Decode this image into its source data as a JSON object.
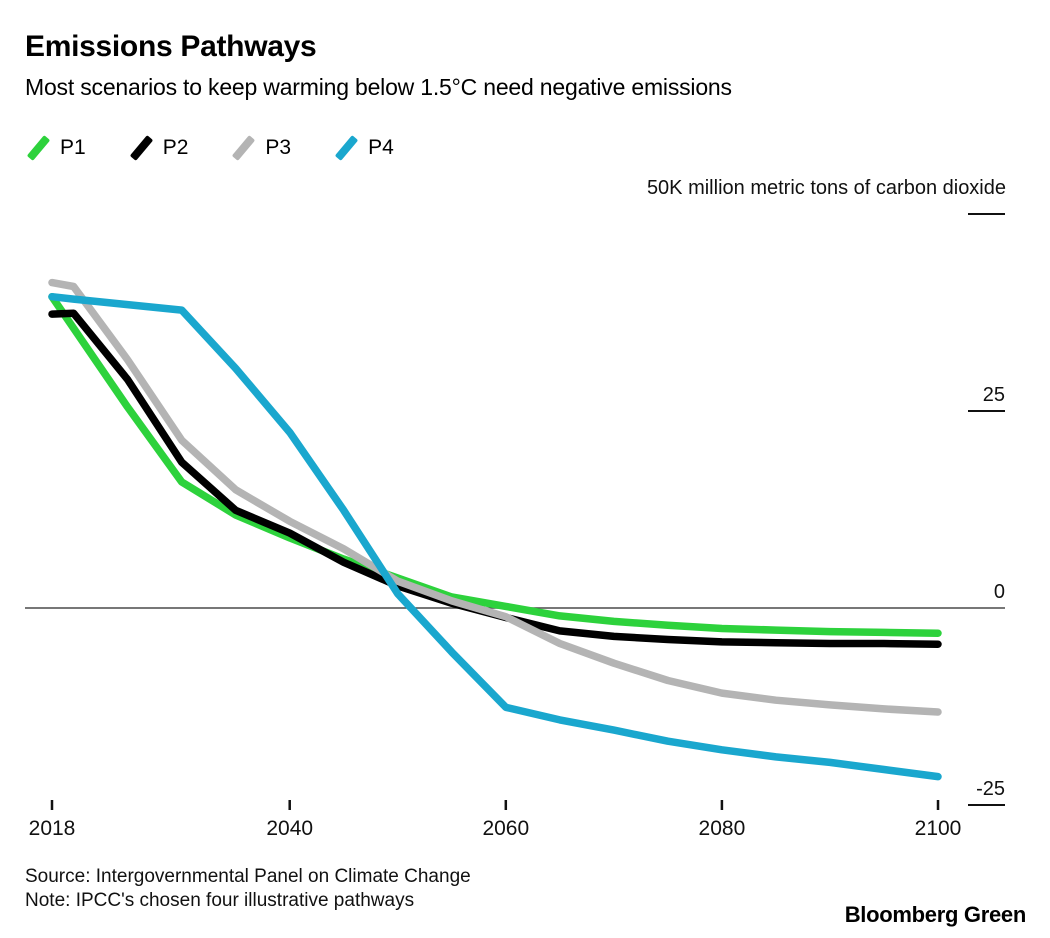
{
  "header": {
    "title": "Emissions Pathways",
    "subtitle": "Most scenarios to keep warming below 1.5°C need negative emissions"
  },
  "legend": [
    {
      "label": "P1",
      "color": "#2dd23c"
    },
    {
      "label": "P2",
      "color": "#000000"
    },
    {
      "label": "P3",
      "color": "#b4b4b4"
    },
    {
      "label": "P4",
      "color": "#1aa7ce"
    }
  ],
  "chart_data": {
    "type": "line",
    "unit_label": "50K million metric tons of carbon dioxide",
    "x": [
      2018,
      2020,
      2025,
      2030,
      2035,
      2040,
      2045,
      2050,
      2055,
      2060,
      2065,
      2070,
      2075,
      2080,
      2085,
      2090,
      2095,
      2100
    ],
    "series": [
      {
        "name": "P1",
        "color": "#2dd23c",
        "values": [
          39.5,
          35.5,
          25.5,
          16.0,
          11.8,
          8.9,
          6.2,
          3.8,
          1.4,
          0.2,
          -1.0,
          -1.7,
          -2.2,
          -2.6,
          -2.8,
          -3.0,
          -3.1,
          -3.2
        ]
      },
      {
        "name": "P2",
        "color": "#000000",
        "values": [
          37.3,
          37.4,
          29.0,
          18.5,
          12.4,
          9.5,
          5.8,
          2.8,
          0.6,
          -1.2,
          -2.9,
          -3.6,
          -4.0,
          -4.3,
          -4.4,
          -4.5,
          -4.5,
          -4.6
        ]
      },
      {
        "name": "P3",
        "color": "#b4b4b4",
        "values": [
          41.3,
          40.8,
          31.5,
          21.3,
          15.0,
          11.0,
          7.5,
          3.4,
          0.9,
          -1.1,
          -4.5,
          -7.0,
          -9.2,
          -10.8,
          -11.7,
          -12.3,
          -12.8,
          -13.2
        ]
      },
      {
        "name": "P4",
        "color": "#1aa7ce",
        "values": [
          39.5,
          39.2,
          38.5,
          37.8,
          30.4,
          22.3,
          12.4,
          1.8,
          -5.6,
          -12.6,
          -14.2,
          -15.5,
          -16.9,
          -18.0,
          -18.9,
          -19.6,
          -20.5,
          -21.4
        ]
      }
    ],
    "x_ticks": [
      {
        "value": 2018,
        "label": "2018"
      },
      {
        "value": 2040,
        "label": "2040"
      },
      {
        "value": 2060,
        "label": "2060"
      },
      {
        "value": 2080,
        "label": "2080"
      },
      {
        "value": 2100,
        "label": "2100"
      }
    ],
    "y_ticks": [
      {
        "value": 50,
        "label": "",
        "tick": true
      },
      {
        "value": 25,
        "label": "25",
        "tick": true
      },
      {
        "value": 0,
        "label": "0",
        "tick": false
      },
      {
        "value": -25,
        "label": "-25",
        "tick": true
      }
    ],
    "xlim": [
      2018,
      2100
    ],
    "ylim": [
      -25,
      50
    ],
    "baseline": 0,
    "grid": "off",
    "legend_position": "top-left"
  },
  "footer": {
    "source": "Source: Intergovernmental Panel on Climate Change",
    "note": "Note: IPCC's chosen four illustrative pathways",
    "brand": "Bloomberg Green"
  }
}
